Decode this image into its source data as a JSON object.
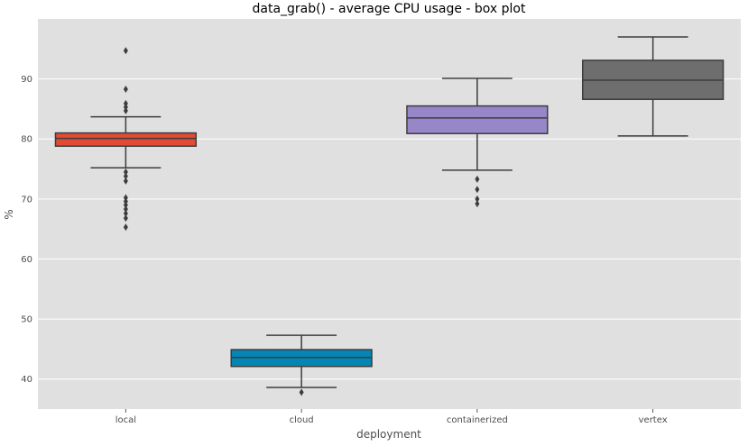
{
  "chart_data": {
    "type": "box",
    "title": "data_grab() - average CPU usage - box plot",
    "xlabel": "deployment",
    "ylabel": "%",
    "ylim": [
      35,
      100
    ],
    "yticks": [
      40,
      50,
      60,
      70,
      80,
      90
    ],
    "grid": true,
    "background": "#e0e0e0",
    "categories": [
      "local",
      "cloud",
      "containerized",
      "vertex"
    ],
    "boxes": [
      {
        "category": "local",
        "color": "#e24a33",
        "whisker_low": 75.2,
        "q1": 78.8,
        "median": 80.1,
        "q3": 81.0,
        "whisker_high": 83.7,
        "outliers": [
          94.7,
          88.3,
          85.9,
          85.3,
          84.7,
          74.5,
          73.8,
          73.0,
          70.2,
          69.6,
          69.0,
          68.3,
          67.6,
          66.8,
          65.3
        ]
      },
      {
        "category": "cloud",
        "color": "#0485b4",
        "whisker_low": 38.6,
        "q1": 42.1,
        "median": 43.6,
        "q3": 44.9,
        "whisker_high": 47.3,
        "outliers": [
          37.8
        ]
      },
      {
        "category": "containerized",
        "color": "#9787c8",
        "whisker_low": 74.8,
        "q1": 80.9,
        "median": 83.5,
        "q3": 85.5,
        "whisker_high": 90.1,
        "outliers": [
          73.3,
          71.6,
          70.0,
          69.2
        ]
      },
      {
        "category": "vertex",
        "color": "#6e6e6e",
        "whisker_low": 80.5,
        "q1": 86.6,
        "median": 89.8,
        "q3": 93.1,
        "whisker_high": 97.0,
        "outliers": []
      }
    ]
  }
}
